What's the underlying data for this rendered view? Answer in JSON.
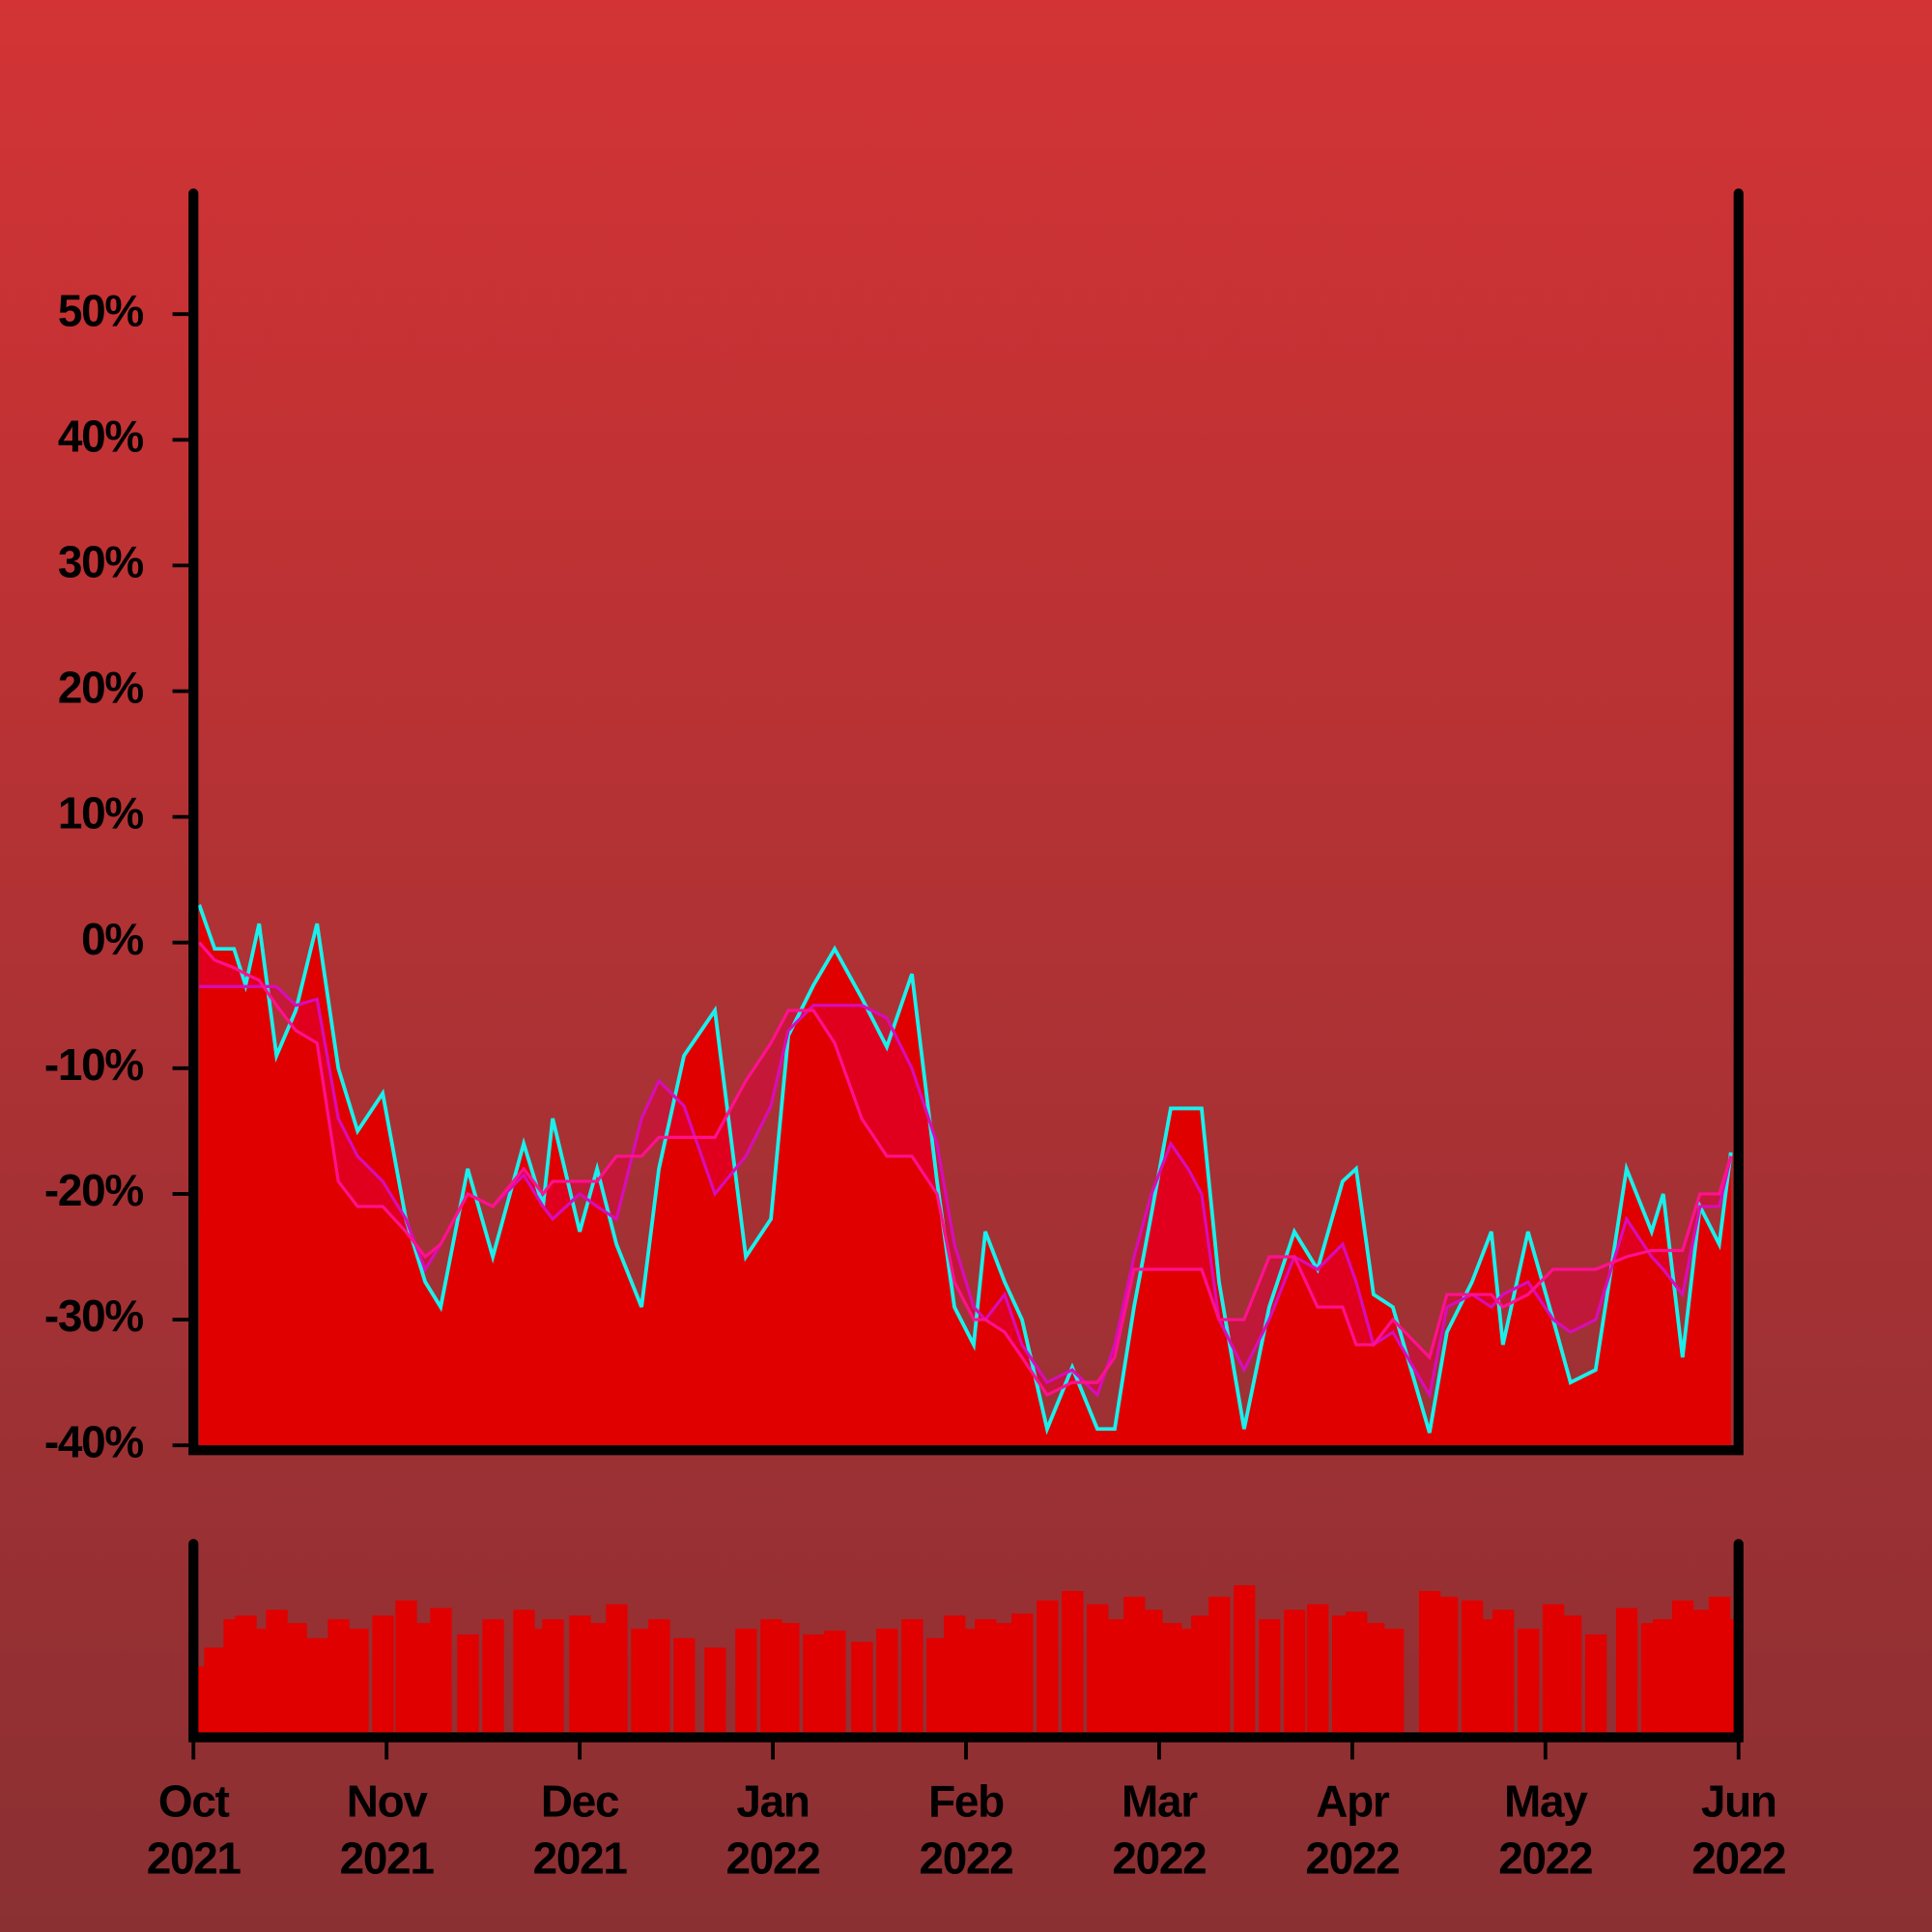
{
  "chart_data": {
    "type": "line",
    "x": [
      0.03,
      0.11,
      0.21,
      0.27,
      0.34,
      0.43,
      0.53,
      0.64,
      0.75,
      0.85,
      0.98,
      1.1,
      1.2,
      1.28,
      1.42,
      1.55,
      1.71,
      1.81,
      1.86,
      2.0,
      2.09,
      2.19,
      2.32,
      2.41,
      2.54,
      2.7,
      2.86,
      2.99,
      3.08,
      3.21,
      3.32,
      3.46,
      3.59,
      3.72,
      3.85,
      3.94,
      4.04,
      4.1,
      4.2,
      4.29,
      4.42,
      4.55,
      4.68,
      4.77,
      4.87,
      4.96,
      5.06,
      5.15,
      5.22,
      5.31,
      5.44,
      5.57,
      5.7,
      5.82,
      5.95,
      6.02,
      6.11,
      6.21,
      6.4,
      6.49,
      6.62,
      6.72,
      6.78,
      6.91,
      7.04,
      7.13,
      7.26,
      7.42,
      7.55,
      7.61,
      7.71,
      7.8,
      7.9,
      7.96
    ],
    "series": [
      {
        "color": "#19f0ec",
        "values": [
          3,
          -0.5,
          -0.5,
          -3.4,
          1.5,
          -9,
          -5.4,
          1.5,
          -10,
          -15,
          -12,
          -22,
          -27,
          -29,
          -18,
          -25,
          -16,
          -21,
          -14,
          -23,
          -18,
          -24,
          -29,
          -18,
          -9,
          -5.4,
          -25,
          -22,
          -7.4,
          -3.4,
          -0.5,
          -4.4,
          -8.3,
          -2.5,
          -19,
          -29,
          -32,
          -23,
          -27,
          -30,
          -38.7,
          -33.8,
          -38.7,
          -38.7,
          -29,
          -21.6,
          -13.2,
          -13.2,
          -13.2,
          -27,
          -38.7,
          -29,
          -23,
          -26,
          -19,
          -18,
          -28,
          -29,
          -39,
          -31,
          -27,
          -23,
          -32,
          -23,
          -30,
          -35,
          -34,
          -18,
          -23,
          -20,
          -33,
          -21,
          -24,
          -16.7
        ]
      },
      {
        "color": "#ff1090",
        "values": [
          0,
          -1.4,
          -2,
          -2.5,
          -3,
          -5,
          -7,
          -8,
          -19,
          -21,
          -21,
          -23,
          -25,
          -24,
          -20,
          -21,
          -18,
          -20,
          -19,
          -19,
          -19,
          -17,
          -17,
          -15.5,
          -15.5,
          -15.5,
          -11,
          -8,
          -5.4,
          -5.4,
          -8,
          -14,
          -17,
          -17,
          -20,
          -27,
          -30,
          -30,
          -31,
          -33,
          -36,
          -35,
          -35,
          -33,
          -26,
          -26,
          -26,
          -26,
          -26,
          -30,
          -30,
          -25,
          -25,
          -29,
          -29,
          -32,
          -32,
          -30,
          -33,
          -28,
          -28,
          -28,
          -29,
          -28,
          -26,
          -26,
          -26,
          -25,
          -24.5,
          -24.5,
          -24.5,
          -20,
          -20,
          -17
        ]
      },
      {
        "color": "#d80cb8",
        "values": [
          -3.5,
          -3.5,
          -3.5,
          -3.5,
          -3.5,
          -3.5,
          -5,
          -4.5,
          -14,
          -17,
          -19,
          -22,
          -26,
          -24,
          -20,
          -21,
          -18.5,
          -21,
          -22,
          -20,
          -21,
          -22,
          -14,
          -11,
          -13,
          -20,
          -17,
          -13,
          -7,
          -5,
          -5,
          -5,
          -6,
          -10,
          -16,
          -24,
          -29,
          -30,
          -28,
          -32,
          -35,
          -34,
          -36,
          -32,
          -25,
          -20,
          -16,
          -18,
          -20,
          -30,
          -34,
          -30,
          -25,
          -26,
          -24,
          -27,
          -32,
          -31,
          -36,
          -29,
          -28,
          -29,
          -28,
          -27,
          -30,
          -31,
          -30,
          -22,
          -25,
          -26,
          -28,
          -21,
          -21,
          -17
        ]
      }
    ],
    "fill_color": "#e00000",
    "volume": {
      "color": "#e00000",
      "vlim": [
        0,
        100
      ],
      "values": [
        35,
        45,
        60,
        62,
        55,
        65,
        58,
        50,
        60,
        55,
        62,
        70,
        58,
        66,
        52,
        60,
        65,
        55,
        60,
        62,
        58,
        68,
        55,
        60,
        50,
        45,
        55,
        60,
        58,
        52,
        54,
        48,
        55,
        60,
        50,
        62,
        55,
        60,
        58,
        63,
        70,
        75,
        68,
        60,
        72,
        65,
        58,
        55,
        62,
        72,
        78,
        60,
        65,
        68,
        62,
        64,
        58,
        55,
        75,
        72,
        70,
        60,
        65,
        55,
        68,
        62,
        52,
        66,
        58,
        60,
        70,
        65,
        72,
        60
      ]
    },
    "xlim": [
      0,
      8
    ],
    "xticks": [
      {
        "value": 0,
        "label": [
          "Oct",
          "2021"
        ]
      },
      {
        "value": 1,
        "label": [
          "Nov",
          "2021"
        ]
      },
      {
        "value": 2,
        "label": [
          "Dec",
          "2021"
        ]
      },
      {
        "value": 3,
        "label": [
          "Jan",
          "2022"
        ]
      },
      {
        "value": 4,
        "label": [
          "Feb",
          "2022"
        ]
      },
      {
        "value": 5,
        "label": [
          "Mar",
          "2022"
        ]
      },
      {
        "value": 6,
        "label": [
          "Apr",
          "2022"
        ]
      },
      {
        "value": 7,
        "label": [
          "May",
          "2022"
        ]
      },
      {
        "value": 8,
        "label": [
          "Jun",
          "2022"
        ]
      }
    ],
    "ylim": [
      -40,
      59.6
    ],
    "yticks": [
      {
        "value": -40,
        "label": "-40%"
      },
      {
        "value": -30,
        "label": "-30%"
      },
      {
        "value": -20,
        "label": "-20%"
      },
      {
        "value": -10,
        "label": "-10%"
      },
      {
        "value": 0,
        "label": "0%"
      },
      {
        "value": 10,
        "label": "10%"
      },
      {
        "value": 20,
        "label": "20%"
      },
      {
        "value": 30,
        "label": "30%"
      },
      {
        "value": 40,
        "label": "40%"
      },
      {
        "value": 50,
        "label": "50%"
      }
    ]
  }
}
